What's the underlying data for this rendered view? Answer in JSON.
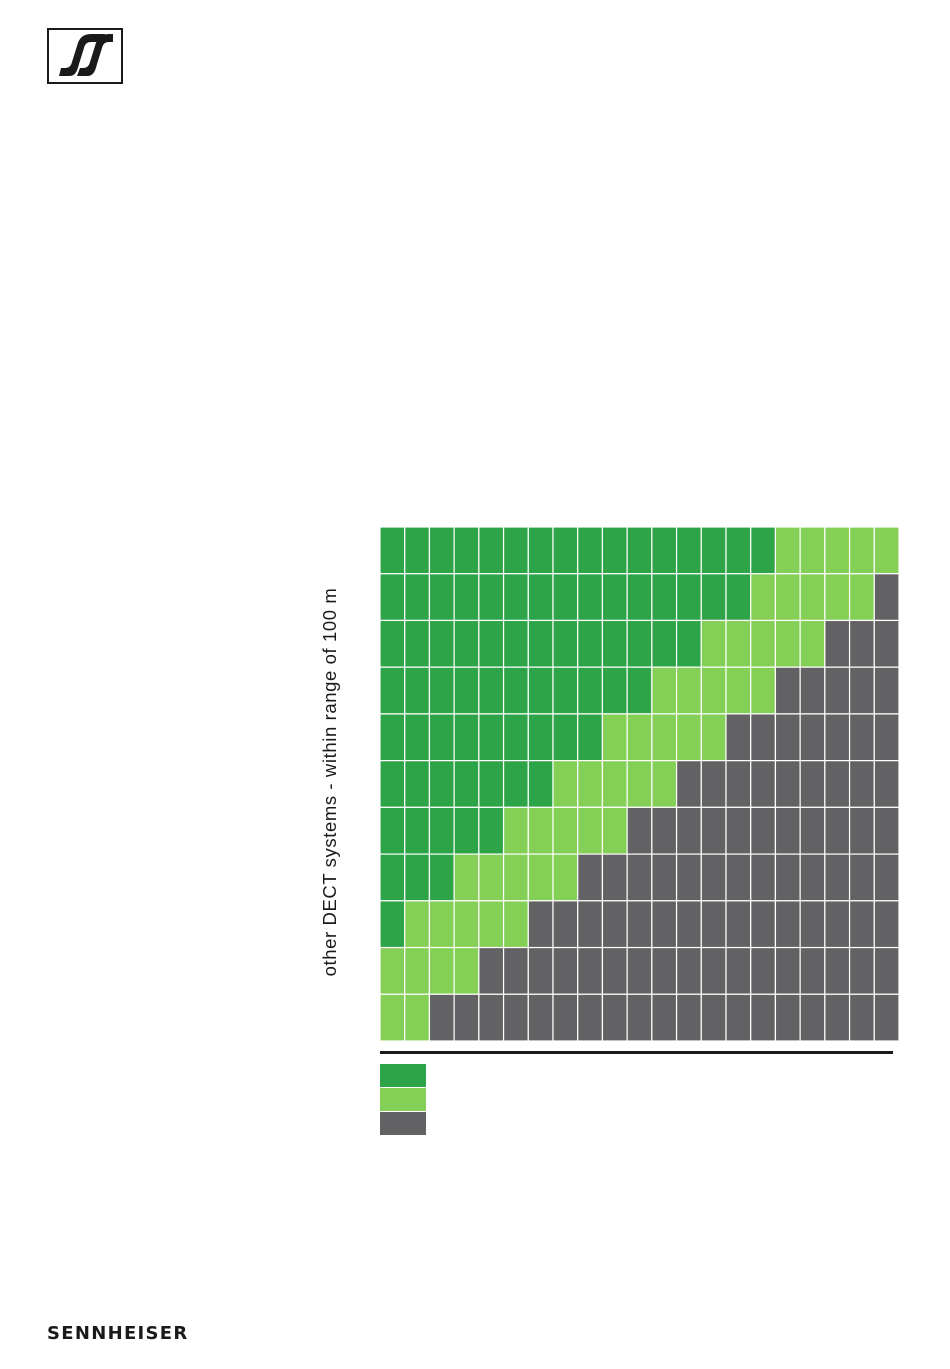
{
  "brand": {
    "name": "SENNHEISER",
    "logo_icon": "sennheiser-s-logo-icon"
  },
  "colors": {
    "dark_green": "#2ea448",
    "light_green": "#84cf55",
    "gray": "#626163",
    "grid_line": "#ffffff",
    "text": "#1a1a1a"
  },
  "chart_data": {
    "type": "heatmap",
    "title": "",
    "ylabel": "other DECT systems - within range of 100 m",
    "xlabel": "",
    "n_cols": 21,
    "n_rows": 11,
    "rows": [
      {
        "dark_green": 16,
        "light_green": 5,
        "gray": 0
      },
      {
        "dark_green": 15,
        "light_green": 5,
        "gray": 1
      },
      {
        "dark_green": 13,
        "light_green": 5,
        "gray": 3
      },
      {
        "dark_green": 11,
        "light_green": 5,
        "gray": 5
      },
      {
        "dark_green": 9,
        "light_green": 5,
        "gray": 7
      },
      {
        "dark_green": 7,
        "light_green": 5,
        "gray": 9
      },
      {
        "dark_green": 5,
        "light_green": 5,
        "gray": 11
      },
      {
        "dark_green": 3,
        "light_green": 5,
        "gray": 13
      },
      {
        "dark_green": 1,
        "light_green": 5,
        "gray": 15
      },
      {
        "dark_green": 0,
        "light_green": 4,
        "gray": 17
      },
      {
        "dark_green": 0,
        "light_green": 2,
        "gray": 19
      }
    ],
    "legend": [
      {
        "color_key": "dark_green",
        "label": ""
      },
      {
        "color_key": "light_green",
        "label": ""
      },
      {
        "color_key": "gray",
        "label": ""
      }
    ]
  }
}
